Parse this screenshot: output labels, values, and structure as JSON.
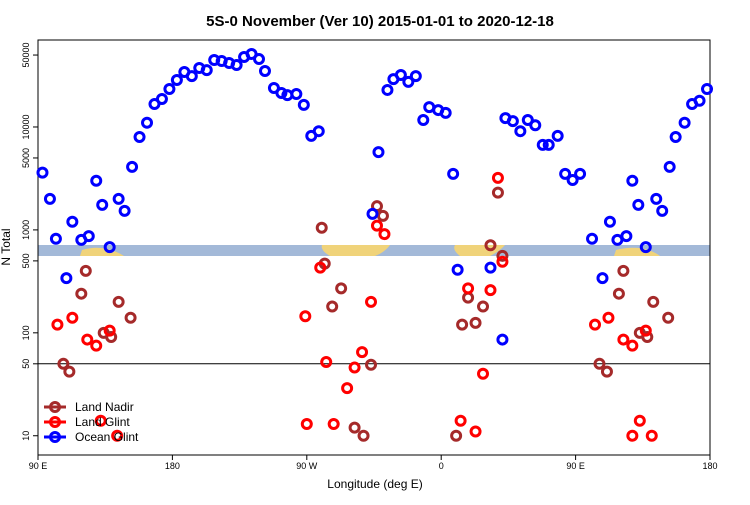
{
  "chart_data": {
    "type": "scatter",
    "title": "5S-0 November (Ver 10)   2015-01-01 to 2020-12-18",
    "x_label": "Longitude (deg E)",
    "y_label": "N Total",
    "xlim": [
      90,
      540
    ],
    "xticks": [
      {
        "value": 90,
        "label": "90 E"
      },
      180,
      {
        "value": 270,
        "label": "90 W"
      },
      {
        "value": 360,
        "label": "0"
      },
      {
        "value": 450,
        "label": "90 E"
      },
      {
        "value": 540,
        "label": "180"
      }
    ],
    "ylim": [
      6.5,
      70000
    ],
    "y_log": true,
    "yticks": [
      10,
      50,
      100,
      500,
      1000,
      5000,
      10000,
      50000
    ],
    "hline": 50,
    "legend": "lower left",
    "series": [
      {
        "name": "Land Nadir",
        "color": "#a52a2a",
        "x": [
          119,
          122,
          107,
          111,
          134,
          139,
          144,
          152,
          280,
          282,
          287,
          293,
          302,
          308,
          313,
          317,
          321,
          370,
          374,
          378,
          383,
          388,
          393,
          398,
          401,
          466,
          471,
          479,
          482,
          493,
          498,
          502,
          512
        ],
        "values": [
          240,
          400,
          50,
          42,
          100,
          91,
          200,
          140,
          1050,
          470,
          180,
          270,
          12,
          10,
          49,
          1700,
          1370,
          10,
          120,
          220,
          125,
          180,
          710,
          2300,
          560,
          50,
          42,
          240,
          400,
          100,
          91,
          200,
          140
        ]
      },
      {
        "name": "Land Glint",
        "color": "#ff0000",
        "x": [
          103,
          113,
          123,
          129,
          132,
          138,
          143,
          269,
          270,
          279,
          283,
          288,
          297,
          302,
          307,
          313,
          317,
          322,
          373,
          378,
          383,
          388,
          393,
          398,
          401,
          463,
          472,
          482,
          488,
          488,
          493,
          497,
          501
        ],
        "values": [
          120,
          140,
          86,
          75,
          14,
          105,
          10,
          145,
          13,
          430,
          52,
          13,
          29,
          46,
          65,
          200,
          1100,
          910,
          14,
          270,
          11,
          40,
          260,
          3200,
          490,
          120,
          140,
          86,
          75,
          10,
          14,
          105,
          10
        ]
      },
      {
        "name": "Ocean Glint",
        "color": "#0000ff",
        "x": [
          93,
          98,
          102,
          109,
          113,
          119,
          124,
          129,
          133,
          138,
          144,
          148,
          153,
          158,
          163,
          168,
          173,
          178,
          183,
          188,
          193,
          198,
          203,
          208,
          213,
          218,
          223,
          228,
          233,
          238,
          242,
          248,
          253,
          257,
          263,
          268,
          273,
          278,
          314,
          318,
          324,
          328,
          333,
          338,
          343,
          348,
          352,
          358,
          363,
          368,
          371,
          393,
          401,
          403,
          408,
          413,
          418,
          423,
          428,
          432,
          438,
          443,
          448,
          453,
          461,
          468,
          473,
          478,
          484,
          488,
          492,
          497,
          504,
          508,
          513,
          517,
          523,
          528,
          533,
          538
        ],
        "values": [
          3600,
          2000,
          820,
          340,
          1200,
          800,
          870,
          3000,
          1750,
          680,
          2000,
          1530,
          4100,
          8000,
          11000,
          16700,
          18700,
          23400,
          28600,
          34200,
          31200,
          37400,
          35700,
          44700,
          43700,
          41800,
          40000,
          47900,
          51200,
          45700,
          35000,
          23900,
          21400,
          20400,
          20900,
          16400,
          8200,
          9100,
          1430,
          5700,
          22900,
          29200,
          32000,
          27400,
          31200,
          11700,
          15600,
          14600,
          13700,
          3500,
          410,
          430,
          86,
          12200,
          11400,
          9100,
          11700,
          10400,
          6700,
          6700,
          8200,
          3500,
          3050,
          3500,
          820,
          340,
          1200,
          800,
          870,
          3000,
          1750,
          680,
          2000,
          1530,
          4100,
          8000,
          11000,
          16700,
          18000,
          23400
        ]
      }
    ]
  }
}
